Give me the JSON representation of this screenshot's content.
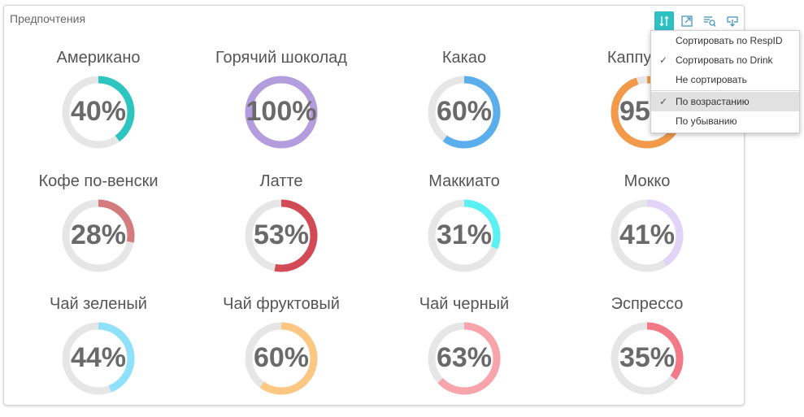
{
  "panel": {
    "title": "Предпочтения"
  },
  "toolbar": {
    "buttons": [
      {
        "name": "sort-button",
        "icon": "sort-icon",
        "active": true
      },
      {
        "name": "expand-button",
        "icon": "expand-icon",
        "active": false
      },
      {
        "name": "filter-search-button",
        "icon": "filter-search-icon",
        "active": false
      },
      {
        "name": "export-button",
        "icon": "export-icon",
        "active": false
      }
    ]
  },
  "menu": {
    "items": [
      {
        "label": "Сортировать по RespID",
        "checked": false,
        "highlighted": false
      },
      {
        "label": "Сортировать по Drink",
        "checked": true,
        "highlighted": false
      },
      {
        "label": "Не сортировать",
        "checked": false,
        "highlighted": false
      },
      {
        "label": "По возрастанию",
        "checked": true,
        "highlighted": true
      },
      {
        "label": "По убыванию",
        "checked": false,
        "highlighted": false
      }
    ],
    "check_glyph": "✓"
  },
  "track_color": "#e6e6e6",
  "tiles": [
    {
      "label": "Американо",
      "value_text": "40%",
      "value": 0.4,
      "color": "#2ec4c0"
    },
    {
      "label": "Горячий шоколад",
      "value_text": "100%",
      "value": 1.0,
      "color": "#b49ddd"
    },
    {
      "label": "Какао",
      "value_text": "60%",
      "value": 0.6,
      "color": "#5aaeec"
    },
    {
      "label": "Каппучино",
      "value_text": "95%",
      "value": 0.95,
      "color": "#f29a4a"
    },
    {
      "label": "Кофе по-венски",
      "value_text": "28%",
      "value": 0.28,
      "color": "#d47b7e"
    },
    {
      "label": "Латте",
      "value_text": "53%",
      "value": 0.53,
      "color": "#d24a56"
    },
    {
      "label": "Маккиато",
      "value_text": "31%",
      "value": 0.31,
      "color": "#5af0f4"
    },
    {
      "label": "Мокко",
      "value_text": "41%",
      "value": 0.41,
      "color": "#e2d4f6"
    },
    {
      "label": "Чай зеленый",
      "value_text": "44%",
      "value": 0.44,
      "color": "#8ee0fb"
    },
    {
      "label": "Чай фруктовый",
      "value_text": "60%",
      "value": 0.6,
      "color": "#fcc783"
    },
    {
      "label": "Чай черный",
      "value_text": "63%",
      "value": 0.63,
      "color": "#f7a5aa"
    },
    {
      "label": "Эспрессо",
      "value_text": "35%",
      "value": 0.35,
      "color": "#f27a86"
    }
  ]
}
